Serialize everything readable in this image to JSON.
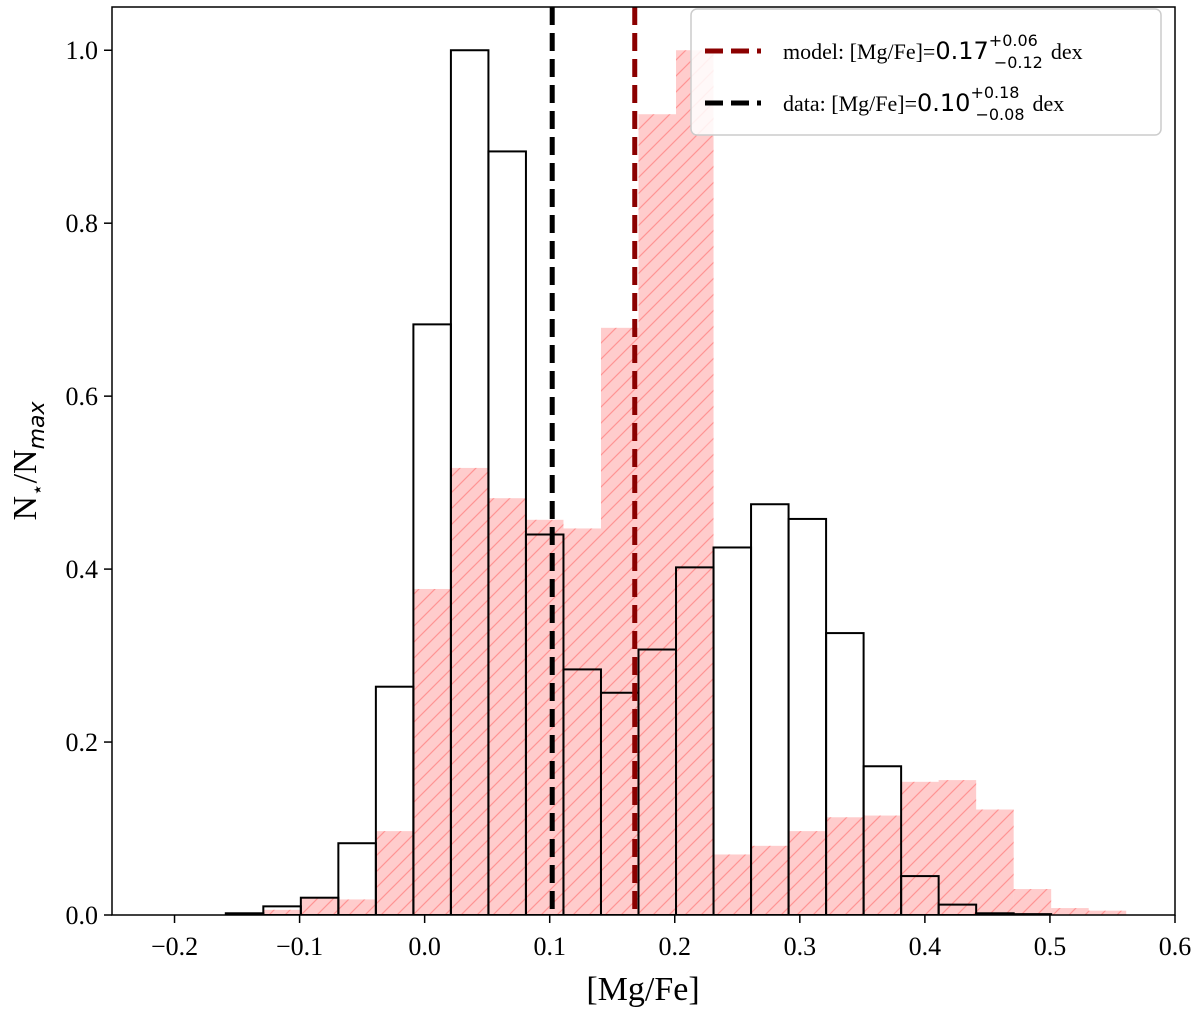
{
  "chart_data": {
    "type": "histogram",
    "xlabel": "[Mg/Fe]",
    "ylabel": {
      "main": "N",
      "sub1": "⋆",
      "mid": "/N",
      "sub2": "max"
    },
    "xlim": [
      -0.25,
      0.6
    ],
    "ylim": [
      0,
      1.05
    ],
    "xticks": [
      {
        "value": -0.2,
        "label": "−0.2"
      },
      {
        "value": -0.1,
        "label": "−0.1"
      },
      {
        "value": 0,
        "label": "0.0"
      },
      0.1,
      0.2,
      0.3,
      0.4,
      0.5,
      0.6
    ],
    "yticks": [
      {
        "value": 0,
        "label": "0.0"
      },
      0.2,
      0.4,
      0.6,
      0.8,
      {
        "value": 1,
        "label": "1.0"
      }
    ],
    "series": [
      {
        "name": "model",
        "color": "#ff0000",
        "fill": "rgba(255,0,0,0.2)",
        "hatch": true,
        "bins": [
          -0.129,
          -0.099,
          -0.069,
          -0.039,
          -0.009,
          0.021,
          0.051,
          0.081,
          0.111,
          0.141,
          0.171,
          0.201,
          0.231,
          0.261,
          0.291,
          0.321,
          0.351,
          0.381,
          0.411,
          0.441,
          0.471,
          0.501,
          0.531,
          0.561
        ],
        "values": [
          0.006,
          0.02,
          0.018,
          0.097,
          0.377,
          0.517,
          0.482,
          0.457,
          0.447,
          0.679,
          0.926,
          1.0,
          0.07,
          0.08,
          0.097,
          0.113,
          0.115,
          0.154,
          0.156,
          0.122,
          0.03,
          0.008,
          0.005
        ]
      },
      {
        "name": "data",
        "color": "#000000",
        "fill": "none",
        "hatch": false,
        "bins": [
          -0.159,
          -0.129,
          -0.099,
          -0.069,
          -0.039,
          -0.009,
          0.021,
          0.051,
          0.081,
          0.111,
          0.141,
          0.171,
          0.201,
          0.231,
          0.261,
          0.291,
          0.321,
          0.351,
          0.381,
          0.411,
          0.441,
          0.471,
          0.501
        ],
        "values": [
          0.002,
          0.01,
          0.02,
          0.083,
          0.264,
          0.683,
          1.0,
          0.883,
          0.44,
          0.284,
          0.257,
          0.307,
          0.402,
          0.425,
          0.475,
          0.458,
          0.326,
          0.172,
          0.045,
          0.012,
          0.002,
          0.001
        ]
      }
    ],
    "vlines": [
      {
        "prefix": "model: [Mg/Fe]=",
        "value": 0.168,
        "value_label": "0.17",
        "err_plus": "+0.06",
        "err_minus": "−0.12",
        "unit": "dex",
        "color": "#8b0000"
      },
      {
        "prefix": "data: [Mg/Fe]=",
        "value": 0.102,
        "value_label": "0.10",
        "err_plus": "+0.18",
        "err_minus": "−0.08",
        "unit": "dex",
        "color": "#000000"
      }
    ],
    "legend": "upper right"
  }
}
